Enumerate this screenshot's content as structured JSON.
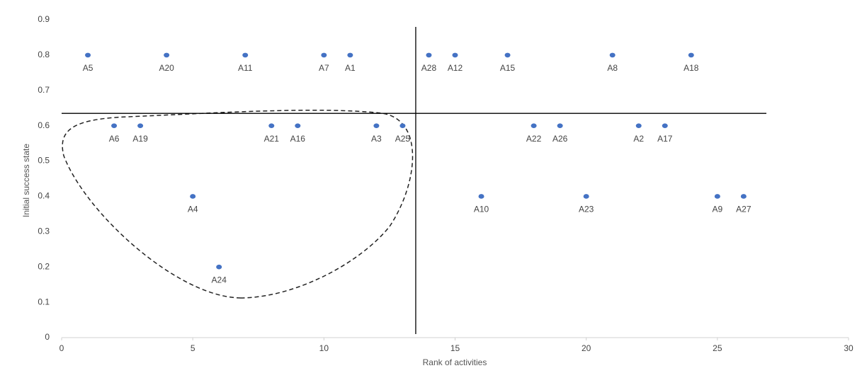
{
  "chart_data": {
    "type": "scatter",
    "xlabel": "Rank of activities",
    "ylabel": "Initial success state",
    "xlim": [
      0,
      30
    ],
    "ylim": [
      0,
      0.9
    ],
    "xticks": [
      0,
      5,
      10,
      15,
      20,
      25,
      30
    ],
    "yticks": [
      0,
      0.1,
      0.2,
      0.3,
      0.4,
      0.5,
      0.6,
      0.7,
      0.8,
      0.9
    ],
    "grid": false,
    "reference_lines": [
      {
        "axis": "x",
        "value": 13.5
      },
      {
        "axis": "y",
        "value": 0.635
      }
    ],
    "series": [
      {
        "color": "#4472c4",
        "x": [
          1,
          4,
          7,
          10,
          11,
          14,
          15,
          17,
          21,
          24,
          2,
          3,
          8,
          9,
          12,
          13,
          18,
          19,
          22,
          23,
          5,
          16,
          20,
          25,
          26,
          6
        ],
        "values": [
          0.8,
          0.8,
          0.8,
          0.8,
          0.8,
          0.8,
          0.8,
          0.8,
          0.8,
          0.8,
          0.6,
          0.6,
          0.6,
          0.6,
          0.6,
          0.6,
          0.6,
          0.6,
          0.6,
          0.6,
          0.4,
          0.4,
          0.4,
          0.4,
          0.4,
          0.2
        ],
        "labels": [
          "A5",
          "A20",
          "A11",
          "A7",
          "A1",
          "A28",
          "A12",
          "A15",
          "A8",
          "A18",
          "A6",
          "A19",
          "A21",
          "A16",
          "A3",
          "A25",
          "A22",
          "A26",
          "A2",
          "A17",
          "A4",
          "A10",
          "A23",
          "A9",
          "A27",
          "A24"
        ]
      }
    ]
  }
}
